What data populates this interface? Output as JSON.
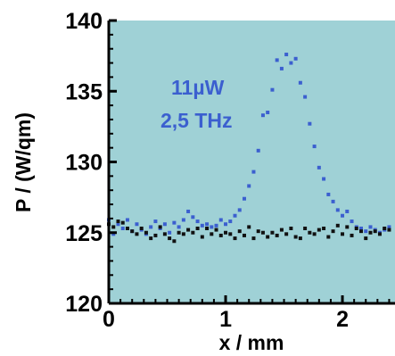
{
  "chart_data": {
    "type": "scatter",
    "title": "",
    "xlabel": "x / mm",
    "ylabel": "P / (W/qm)",
    "xlim": [
      0,
      2.45
    ],
    "ylim": [
      120,
      140
    ],
    "xticks": [
      0,
      1,
      2
    ],
    "xtick_labels": [
      "0",
      "1",
      "2"
    ],
    "yticks": [
      120,
      125,
      130,
      135,
      140
    ],
    "ytick_labels": [
      "120",
      "125",
      "130",
      "135",
      "140"
    ],
    "grid": false,
    "legend": "none",
    "annotations": [
      "11µW",
      "2,5 THz"
    ],
    "colors": {
      "background": "#9fd1d6",
      "signal": "#3b5fcf",
      "baseline": "#111111",
      "annotation": "#3b5fcf"
    },
    "series": [
      {
        "x": [
          0.0,
          0.04,
          0.08,
          0.12,
          0.16,
          0.2,
          0.24,
          0.28,
          0.32,
          0.36,
          0.4,
          0.44,
          0.48,
          0.52,
          0.56,
          0.6,
          0.64,
          0.68,
          0.72,
          0.76,
          0.8,
          0.84,
          0.88,
          0.92,
          0.96,
          1.0,
          1.04,
          1.08,
          1.12,
          1.16,
          1.2,
          1.24,
          1.28,
          1.32,
          1.36,
          1.4,
          1.44,
          1.48,
          1.52,
          1.56,
          1.6,
          1.64,
          1.68,
          1.72,
          1.76,
          1.8,
          1.84,
          1.88,
          1.92,
          1.96,
          2.0,
          2.04,
          2.08,
          2.12,
          2.16,
          2.2,
          2.24,
          2.28,
          2.32,
          2.36,
          2.4
        ],
        "y": [
          125.9,
          124.9,
          125.6,
          125.3,
          125.9,
          125.1,
          125.6,
          125.2,
          124.9,
          125.4,
          125.8,
          125.3,
          125.6,
          125.0,
          125.7,
          125.4,
          125.9,
          126.5,
          126.1,
          125.8,
          125.5,
          125.6,
          125.4,
          125.5,
          125.9,
          125.6,
          125.8,
          126.2,
          126.6,
          127.4,
          128.3,
          129.3,
          130.8,
          133.3,
          133.5,
          135.1,
          137.2,
          136.6,
          137.6,
          137.0,
          137.3,
          135.6,
          134.6,
          132.7,
          131.1,
          129.6,
          128.8,
          127.7,
          127.2,
          126.6,
          126.2,
          126.5,
          125.8,
          125.4,
          125.3,
          125.1,
          125.4,
          125.2,
          125.0,
          125.2,
          125.4
        ]
      },
      {
        "x": [
          0.0,
          0.04,
          0.08,
          0.12,
          0.16,
          0.2,
          0.24,
          0.28,
          0.32,
          0.36,
          0.4,
          0.44,
          0.48,
          0.52,
          0.56,
          0.6,
          0.64,
          0.68,
          0.72,
          0.76,
          0.8,
          0.84,
          0.88,
          0.92,
          0.96,
          1.0,
          1.04,
          1.08,
          1.12,
          1.16,
          1.2,
          1.24,
          1.28,
          1.32,
          1.36,
          1.4,
          1.44,
          1.48,
          1.52,
          1.56,
          1.6,
          1.64,
          1.68,
          1.72,
          1.76,
          1.8,
          1.84,
          1.88,
          1.92,
          1.96,
          2.0,
          2.04,
          2.08,
          2.12,
          2.16,
          2.2,
          2.24,
          2.28,
          2.32,
          2.36,
          2.4
        ],
        "y": [
          125.6,
          125.4,
          125.8,
          125.7,
          125.3,
          125.1,
          124.9,
          125.3,
          125.0,
          124.6,
          124.8,
          125.4,
          124.9,
          124.6,
          124.4,
          125.0,
          124.9,
          125.2,
          125.0,
          125.3,
          124.7,
          125.3,
          124.9,
          125.2,
          124.8,
          125.0,
          124.9,
          124.6,
          125.1,
          124.8,
          125.4,
          124.6,
          125.1,
          125.0,
          124.7,
          125.0,
          124.8,
          125.2,
          124.9,
          125.3,
          124.7,
          124.6,
          125.3,
          125.0,
          124.9,
          125.2,
          125.3,
          124.7,
          125.1,
          125.5,
          124.9,
          125.4,
          124.8,
          125.3,
          125.1,
          124.6,
          125.0,
          125.1,
          124.9,
          125.3,
          125.2
        ]
      }
    ]
  }
}
